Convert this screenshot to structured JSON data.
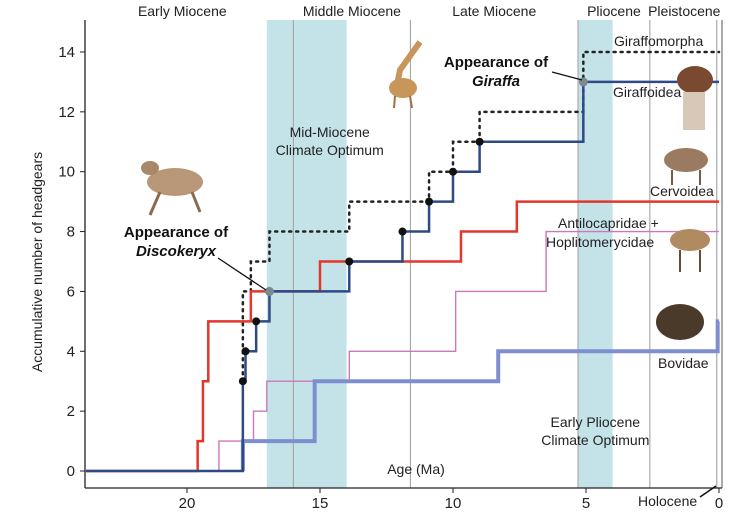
{
  "chart_data": {
    "type": "line",
    "subtype": "step",
    "xlabel": "Age (Ma)",
    "ylabel": "Accumulative number of headgears",
    "xlim": [
      23.8,
      0
    ],
    "ylim": [
      0,
      14.5
    ],
    "xticks": [
      20,
      15,
      10,
      5,
      0
    ],
    "yticks": [
      0,
      2,
      4,
      6,
      8,
      10,
      12,
      14
    ],
    "epochs": [
      {
        "name": "Early Miocene",
        "start": 23.0,
        "end": 16.0
      },
      {
        "name": "Middle Miocene",
        "start": 16.0,
        "end": 11.6
      },
      {
        "name": "Late Miocene",
        "start": 11.6,
        "end": 5.3
      },
      {
        "name": "Pliocene",
        "start": 5.3,
        "end": 2.6
      },
      {
        "name": "Pleistocene",
        "start": 2.6,
        "end": 0.01
      }
    ],
    "holocene_label": "Holocene",
    "climate_bands": [
      {
        "label_lines": [
          "Mid-Miocene",
          "Climate Optimum"
        ],
        "start": 17.0,
        "end": 14.0
      },
      {
        "label_lines": [
          "Early Pliocene",
          "Climate Optimum"
        ],
        "start": 5.3,
        "end": 4.0
      }
    ],
    "series": [
      {
        "name": "Giraffomorpha",
        "color": "#222222",
        "style": "dotted",
        "start_age": 17.9,
        "start_value": 3,
        "steps": [
          [
            17.9,
            6
          ],
          [
            17.6,
            7
          ],
          [
            16.9,
            8
          ],
          [
            13.9,
            9
          ],
          [
            10.9,
            10
          ],
          [
            10.0,
            11
          ],
          [
            9.0,
            12
          ],
          [
            5.1,
            14
          ]
        ]
      },
      {
        "name": "Cervoidea",
        "color": "#e2372a",
        "style": "solid",
        "start_age": 23.8,
        "start_value": 0,
        "steps": [
          [
            19.6,
            1
          ],
          [
            19.4,
            3
          ],
          [
            19.2,
            5
          ],
          [
            17.6,
            6
          ],
          [
            15.0,
            7
          ],
          [
            9.7,
            8
          ],
          [
            7.6,
            9
          ]
        ]
      },
      {
        "name": "Antilocapridae + Hoplitomerycidae",
        "color": "#cc77bb",
        "style": "thin",
        "start_age": 18.8,
        "start_value": 0,
        "steps": [
          [
            18.8,
            1
          ],
          [
            17.5,
            2
          ],
          [
            17.0,
            3
          ],
          [
            13.9,
            4
          ],
          [
            9.9,
            6
          ],
          [
            6.5,
            8
          ]
        ]
      },
      {
        "name": "Bovidae",
        "color": "#7d8fcf",
        "style": "thick",
        "start_age": 17.9,
        "start_value": 0,
        "steps": [
          [
            17.9,
            1
          ],
          [
            15.2,
            3
          ],
          [
            8.3,
            4
          ],
          [
            0.05,
            5
          ]
        ]
      },
      {
        "name": "Giraffoidea",
        "color": "#2e4a86",
        "style": "solid",
        "start_age": 23.8,
        "start_value": 0,
        "steps": [
          [
            17.9,
            3
          ],
          [
            17.8,
            4
          ],
          [
            17.4,
            5
          ],
          [
            16.9,
            6
          ],
          [
            13.9,
            7
          ],
          [
            11.9,
            8
          ],
          [
            10.9,
            9
          ],
          [
            10.0,
            10
          ],
          [
            9.0,
            11
          ],
          [
            5.1,
            13
          ]
        ],
        "markers": [
          [
            17.9,
            3
          ],
          [
            17.8,
            4
          ],
          [
            17.4,
            5
          ],
          [
            13.9,
            7
          ],
          [
            11.9,
            8
          ],
          [
            10.9,
            9
          ],
          [
            10.0,
            10
          ],
          [
            9.0,
            11
          ]
        ]
      }
    ],
    "annotations": [
      {
        "text_lines": [
          "Appearance of",
          "Discokeryx"
        ],
        "age": 16.9,
        "value": 6
      },
      {
        "text_lines": [
          "Appearance of",
          "Giraffa"
        ],
        "age": 5.1,
        "value": 13
      }
    ]
  }
}
